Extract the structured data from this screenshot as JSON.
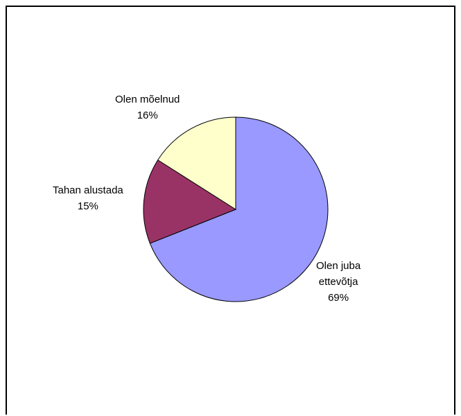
{
  "chart_data": {
    "type": "pie",
    "title": "",
    "slices": [
      {
        "label": "Olen juba ettevõtja",
        "label_lines": [
          "Olen juba",
          "ettevõtja"
        ],
        "percent_label": "69%",
        "value": 69,
        "color": "#9999FF"
      },
      {
        "label": "Tahan alustada",
        "label_lines": [
          "Tahan alustada"
        ],
        "percent_label": "15%",
        "value": 15,
        "color": "#993366"
      },
      {
        "label": "Olen mõelnud",
        "label_lines": [
          "Olen mõelnud"
        ],
        "percent_label": "16%",
        "value": 16,
        "color": "#FFFFCC"
      }
    ],
    "start_angle": "12 o'clock",
    "direction": "clockwise",
    "legend": "none"
  }
}
